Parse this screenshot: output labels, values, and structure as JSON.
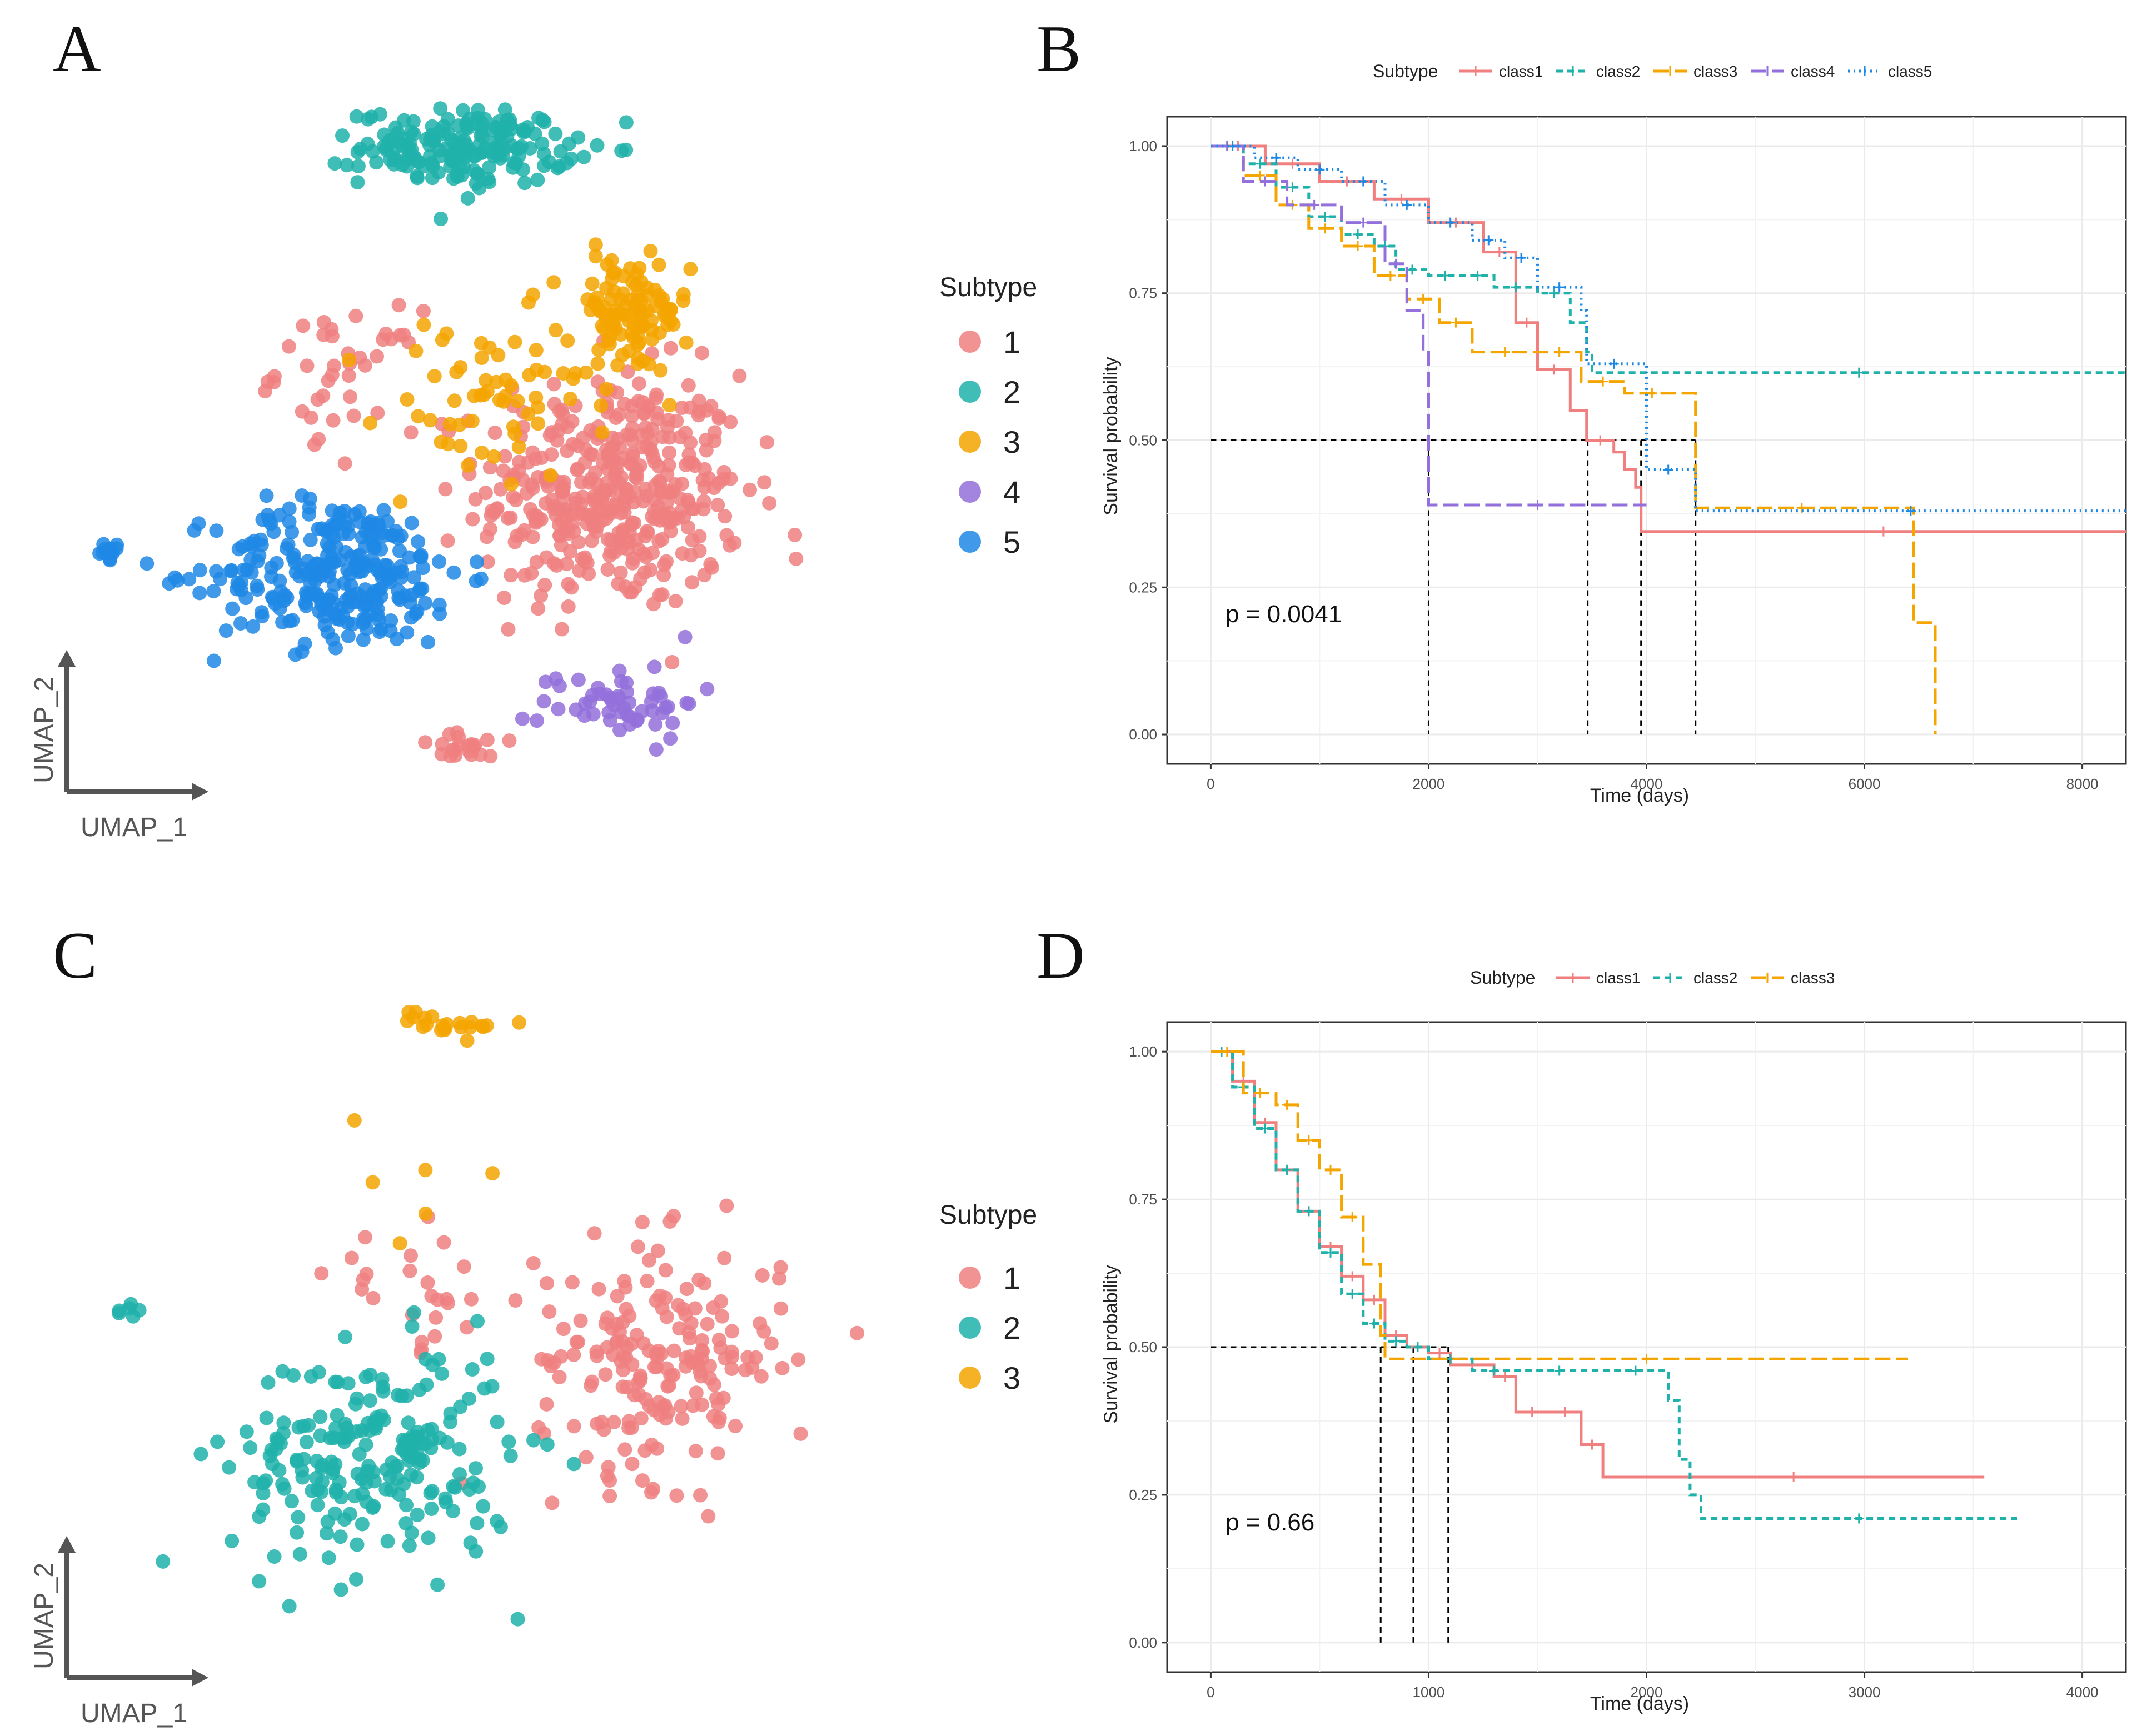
{
  "panel_labels": {
    "a": "A",
    "b": "B",
    "c": "C",
    "d": "D"
  },
  "colors": {
    "c1": "#F08080",
    "c2": "#20B2AA",
    "c3": "#F5A500",
    "c4": "#9370DB",
    "c5": "#1E88E5",
    "grid": "#ebebeb",
    "axis": "#333333"
  },
  "chart_data": [
    {
      "id": "A",
      "type": "scatter",
      "xlabel": "UMAP_1",
      "ylabel": "UMAP_2",
      "legend_title": "Subtype",
      "legend": [
        {
          "label": "1",
          "color": "#F08080"
        },
        {
          "label": "2",
          "color": "#20B2AA"
        },
        {
          "label": "3",
          "color": "#F5A500"
        },
        {
          "label": "4",
          "color": "#9370DB"
        },
        {
          "label": "5",
          "color": "#1E88E5"
        }
      ],
      "clusters": [
        {
          "cls": "1",
          "n": 420,
          "cx": 0.66,
          "cy": 0.42,
          "sx": 0.15,
          "sy": 0.16
        },
        {
          "cls": "1",
          "n": 40,
          "cx": 0.33,
          "cy": 0.6,
          "sx": 0.08,
          "sy": 0.08
        },
        {
          "cls": "1",
          "n": 20,
          "cx": 0.48,
          "cy": 0.04,
          "sx": 0.06,
          "sy": 0.02
        },
        {
          "cls": "2",
          "n": 190,
          "cx": 0.48,
          "cy": 0.93,
          "sx": 0.12,
          "sy": 0.05
        },
        {
          "cls": "3",
          "n": 110,
          "cx": 0.68,
          "cy": 0.68,
          "sx": 0.07,
          "sy": 0.08
        },
        {
          "cls": "3",
          "n": 60,
          "cx": 0.5,
          "cy": 0.55,
          "sx": 0.12,
          "sy": 0.12
        },
        {
          "cls": "4",
          "n": 55,
          "cx": 0.67,
          "cy": 0.11,
          "sx": 0.09,
          "sy": 0.05
        },
        {
          "cls": "5",
          "n": 280,
          "cx": 0.32,
          "cy": 0.3,
          "sx": 0.14,
          "sy": 0.1
        },
        {
          "cls": "5",
          "n": 12,
          "cx": 0.03,
          "cy": 0.33,
          "sx": 0.015,
          "sy": 0.01
        }
      ]
    },
    {
      "id": "B",
      "type": "line",
      "title": "",
      "xlabel": "Time (days)",
      "ylabel": "Survival probability",
      "xlim": [
        -400,
        8400
      ],
      "ylim": [
        -0.05,
        1.05
      ],
      "xticks": [
        0,
        2000,
        4000,
        6000,
        8000
      ],
      "yticks": [
        0.0,
        0.25,
        0.5,
        0.75,
        1.0
      ],
      "ytick_labels": [
        "0.00",
        "0.25",
        "0.50",
        "0.75",
        "1.00"
      ],
      "legend_title": "Subtype",
      "p_value_text": "p = 0.0041",
      "median_lines": [
        2000,
        3460,
        3950,
        4450
      ],
      "series": [
        {
          "name": "class1",
          "color": "#F08080",
          "dash": "",
          "x": [
            0,
            500,
            1000,
            1500,
            2000,
            2500,
            2800,
            3000,
            3300,
            3450,
            3700,
            3800,
            3900,
            3950,
            8400
          ],
          "y": [
            1.0,
            0.97,
            0.94,
            0.91,
            0.87,
            0.82,
            0.7,
            0.62,
            0.55,
            0.5,
            0.48,
            0.45,
            0.42,
            0.345,
            0.345
          ]
        },
        {
          "name": "class2",
          "color": "#20B2AA",
          "dash": "12,8",
          "x": [
            0,
            300,
            600,
            900,
            1200,
            1500,
            1700,
            2000,
            2300,
            2600,
            3000,
            3300,
            3450,
            3500,
            8400
          ],
          "y": [
            1.0,
            0.97,
            0.93,
            0.88,
            0.85,
            0.83,
            0.79,
            0.78,
            0.78,
            0.76,
            0.75,
            0.7,
            0.65,
            0.615,
            0.615
          ]
        },
        {
          "name": "class3",
          "color": "#F5A500",
          "dash": "28,10",
          "x": [
            0,
            300,
            600,
            900,
            1200,
            1500,
            1800,
            2100,
            2400,
            3000,
            3400,
            3800,
            4300,
            4450,
            6400,
            6450,
            6600,
            6650
          ],
          "y": [
            1.0,
            0.95,
            0.9,
            0.86,
            0.83,
            0.78,
            0.74,
            0.7,
            0.65,
            0.65,
            0.6,
            0.58,
            0.58,
            0.385,
            0.385,
            0.19,
            0.19,
            0.0
          ]
        },
        {
          "name": "class4",
          "color": "#9370DB",
          "dash": "28,10",
          "x": [
            0,
            300,
            700,
            1200,
            1600,
            1800,
            1950,
            2000,
            4000
          ],
          "y": [
            1.0,
            0.94,
            0.9,
            0.87,
            0.8,
            0.72,
            0.65,
            0.39,
            0.39
          ]
        },
        {
          "name": "class5",
          "color": "#1E88E5",
          "dash": "3,7",
          "x": [
            0,
            400,
            800,
            1200,
            1600,
            2000,
            2400,
            2700,
            3000,
            3400,
            3450,
            3950,
            4000,
            4400,
            4450,
            8400
          ],
          "y": [
            1.0,
            0.98,
            0.96,
            0.94,
            0.9,
            0.87,
            0.84,
            0.81,
            0.76,
            0.72,
            0.63,
            0.63,
            0.45,
            0.45,
            0.38,
            0.38
          ]
        }
      ]
    },
    {
      "id": "C",
      "type": "scatter",
      "xlabel": "UMAP_1",
      "ylabel": "UMAP_2",
      "legend_title": "Subtype",
      "legend": [
        {
          "label": "1",
          "color": "#F08080"
        },
        {
          "label": "2",
          "color": "#20B2AA"
        },
        {
          "label": "3",
          "color": "#F5A500"
        }
      ],
      "clusters": [
        {
          "cls": "1",
          "n": 190,
          "cx": 0.72,
          "cy": 0.45,
          "sx": 0.14,
          "sy": 0.16
        },
        {
          "cls": "1",
          "n": 25,
          "cx": 0.42,
          "cy": 0.55,
          "sx": 0.1,
          "sy": 0.08
        },
        {
          "cls": "2",
          "n": 220,
          "cx": 0.36,
          "cy": 0.3,
          "sx": 0.16,
          "sy": 0.15
        },
        {
          "cls": "2",
          "n": 6,
          "cx": 0.06,
          "cy": 0.52,
          "sx": 0.015,
          "sy": 0.015
        },
        {
          "cls": "3",
          "n": 22,
          "cx": 0.46,
          "cy": 0.95,
          "sx": 0.06,
          "sy": 0.02
        },
        {
          "cls": "3",
          "n": 6,
          "cx": 0.4,
          "cy": 0.7,
          "sx": 0.12,
          "sy": 0.08
        }
      ]
    },
    {
      "id": "D",
      "type": "line",
      "title": "",
      "xlabel": "Time (days)",
      "ylabel": "Survival probability",
      "xlim": [
        -200,
        4200
      ],
      "ylim": [
        -0.05,
        1.05
      ],
      "xticks": [
        0,
        1000,
        2000,
        3000,
        4000
      ],
      "yticks": [
        0.0,
        0.25,
        0.5,
        0.75,
        1.0
      ],
      "ytick_labels": [
        "0.00",
        "0.25",
        "0.50",
        "0.75",
        "1.00"
      ],
      "legend_title": "Subtype",
      "p_value_text": "p = 0.66",
      "median_lines": [
        780,
        930,
        1090
      ],
      "series": [
        {
          "name": "class1",
          "color": "#F08080",
          "dash": "",
          "x": [
            0,
            100,
            200,
            300,
            400,
            500,
            600,
            700,
            800,
            900,
            1000,
            1100,
            1300,
            1400,
            1550,
            1700,
            1800,
            3550
          ],
          "y": [
            1.0,
            0.95,
            0.88,
            0.8,
            0.73,
            0.67,
            0.62,
            0.58,
            0.52,
            0.5,
            0.49,
            0.47,
            0.45,
            0.39,
            0.39,
            0.335,
            0.28,
            0.28
          ]
        },
        {
          "name": "class2",
          "color": "#20B2AA",
          "dash": "12,8",
          "x": [
            0,
            100,
            200,
            300,
            400,
            500,
            600,
            700,
            800,
            900,
            1000,
            1200,
            1400,
            1800,
            2100,
            2150,
            2200,
            2250,
            3700
          ],
          "y": [
            1.0,
            0.94,
            0.87,
            0.8,
            0.73,
            0.66,
            0.59,
            0.54,
            0.51,
            0.5,
            0.48,
            0.46,
            0.46,
            0.46,
            0.41,
            0.31,
            0.25,
            0.21,
            0.21
          ]
        },
        {
          "name": "class3",
          "color": "#F5A500",
          "dash": "28,10",
          "x": [
            0,
            150,
            300,
            400,
            500,
            600,
            700,
            780,
            800,
            3200
          ],
          "y": [
            1.0,
            0.93,
            0.91,
            0.85,
            0.8,
            0.72,
            0.64,
            0.52,
            0.48,
            0.48
          ]
        }
      ]
    }
  ]
}
